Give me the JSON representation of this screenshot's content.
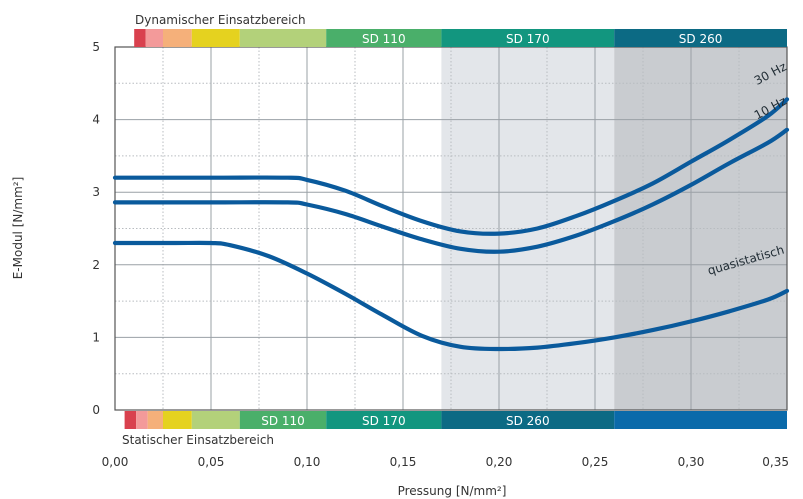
{
  "chart_data": {
    "type": "line",
    "xlabel": "Pressung [N/mm²]",
    "ylabel": "E-Modul [N/mm²]",
    "xlim": [
      0,
      0.35
    ],
    "ylim": [
      0,
      5
    ],
    "x_ticks": [
      "0,00",
      "0,05",
      "0,10",
      "0,15",
      "0,20",
      "0,25",
      "0,30",
      "0,35"
    ],
    "y_ticks": [
      "0",
      "1",
      "2",
      "3",
      "4",
      "5"
    ],
    "grid": true,
    "shaded_regions": [
      {
        "from": 0.17,
        "to": 0.26,
        "color": "#e3e6ea"
      },
      {
        "from": 0.26,
        "to": 0.35,
        "color": "#c9ccd0"
      }
    ],
    "series": [
      {
        "name": "30 Hz",
        "color": "#0a5a9c",
        "x": [
          0.0,
          0.05,
          0.09,
          0.1,
          0.12,
          0.14,
          0.16,
          0.18,
          0.2,
          0.22,
          0.24,
          0.26,
          0.28,
          0.3,
          0.32,
          0.34,
          0.35
        ],
        "y": [
          3.2,
          3.2,
          3.2,
          3.17,
          3.02,
          2.8,
          2.6,
          2.46,
          2.43,
          2.5,
          2.67,
          2.88,
          3.12,
          3.42,
          3.72,
          4.05,
          4.28
        ]
      },
      {
        "name": "10 Hz",
        "color": "#0a5a9c",
        "x": [
          0.0,
          0.05,
          0.09,
          0.1,
          0.12,
          0.14,
          0.16,
          0.18,
          0.2,
          0.22,
          0.24,
          0.26,
          0.28,
          0.3,
          0.32,
          0.34,
          0.35
        ],
        "y": [
          2.86,
          2.86,
          2.86,
          2.83,
          2.7,
          2.52,
          2.35,
          2.22,
          2.18,
          2.25,
          2.4,
          2.6,
          2.83,
          3.1,
          3.4,
          3.68,
          3.86
        ]
      },
      {
        "name": "quasistatisch",
        "color": "#0a5a9c",
        "x": [
          0.0,
          0.03,
          0.05,
          0.06,
          0.08,
          0.1,
          0.12,
          0.14,
          0.16,
          0.18,
          0.2,
          0.22,
          0.24,
          0.26,
          0.28,
          0.3,
          0.32,
          0.34,
          0.35
        ],
        "y": [
          2.3,
          2.3,
          2.3,
          2.27,
          2.12,
          1.88,
          1.6,
          1.3,
          1.02,
          0.87,
          0.84,
          0.86,
          0.92,
          1.0,
          1.1,
          1.22,
          1.36,
          1.52,
          1.64
        ]
      }
    ],
    "top_bar": {
      "title": "Dynamischer Einsatzbereich",
      "segments": [
        {
          "from": 0.01,
          "to": 0.016,
          "color": "#d9414e"
        },
        {
          "from": 0.016,
          "to": 0.025,
          "color": "#f39a9a"
        },
        {
          "from": 0.025,
          "to": 0.04,
          "color": "#f5b07a"
        },
        {
          "from": 0.04,
          "to": 0.065,
          "color": "#e5d21f"
        },
        {
          "from": 0.065,
          "to": 0.11,
          "color": "#b3d17a"
        },
        {
          "from": 0.11,
          "to": 0.17,
          "color": "#4aaf6a",
          "label": "SD 110"
        },
        {
          "from": 0.17,
          "to": 0.26,
          "color": "#12967f",
          "label": "SD 170"
        },
        {
          "from": 0.26,
          "to": 0.35,
          "color": "#0c6a84",
          "label": "SD 260"
        }
      ]
    },
    "bottom_bar": {
      "title": "Statischer Einsatzbereich",
      "segments": [
        {
          "from": 0.005,
          "to": 0.011,
          "color": "#d9414e"
        },
        {
          "from": 0.011,
          "to": 0.017,
          "color": "#f39a9a"
        },
        {
          "from": 0.017,
          "to": 0.025,
          "color": "#f5b07a"
        },
        {
          "from": 0.025,
          "to": 0.04,
          "color": "#e5d21f"
        },
        {
          "from": 0.04,
          "to": 0.065,
          "color": "#b3d17a"
        },
        {
          "from": 0.065,
          "to": 0.11,
          "color": "#4aaf6a",
          "label": "SD 110"
        },
        {
          "from": 0.11,
          "to": 0.17,
          "color": "#12967f",
          "label": "SD 170"
        },
        {
          "from": 0.17,
          "to": 0.26,
          "color": "#0c6a84",
          "label": "SD 260"
        },
        {
          "from": 0.26,
          "to": 0.35,
          "color": "#0a6aaa"
        }
      ]
    }
  }
}
